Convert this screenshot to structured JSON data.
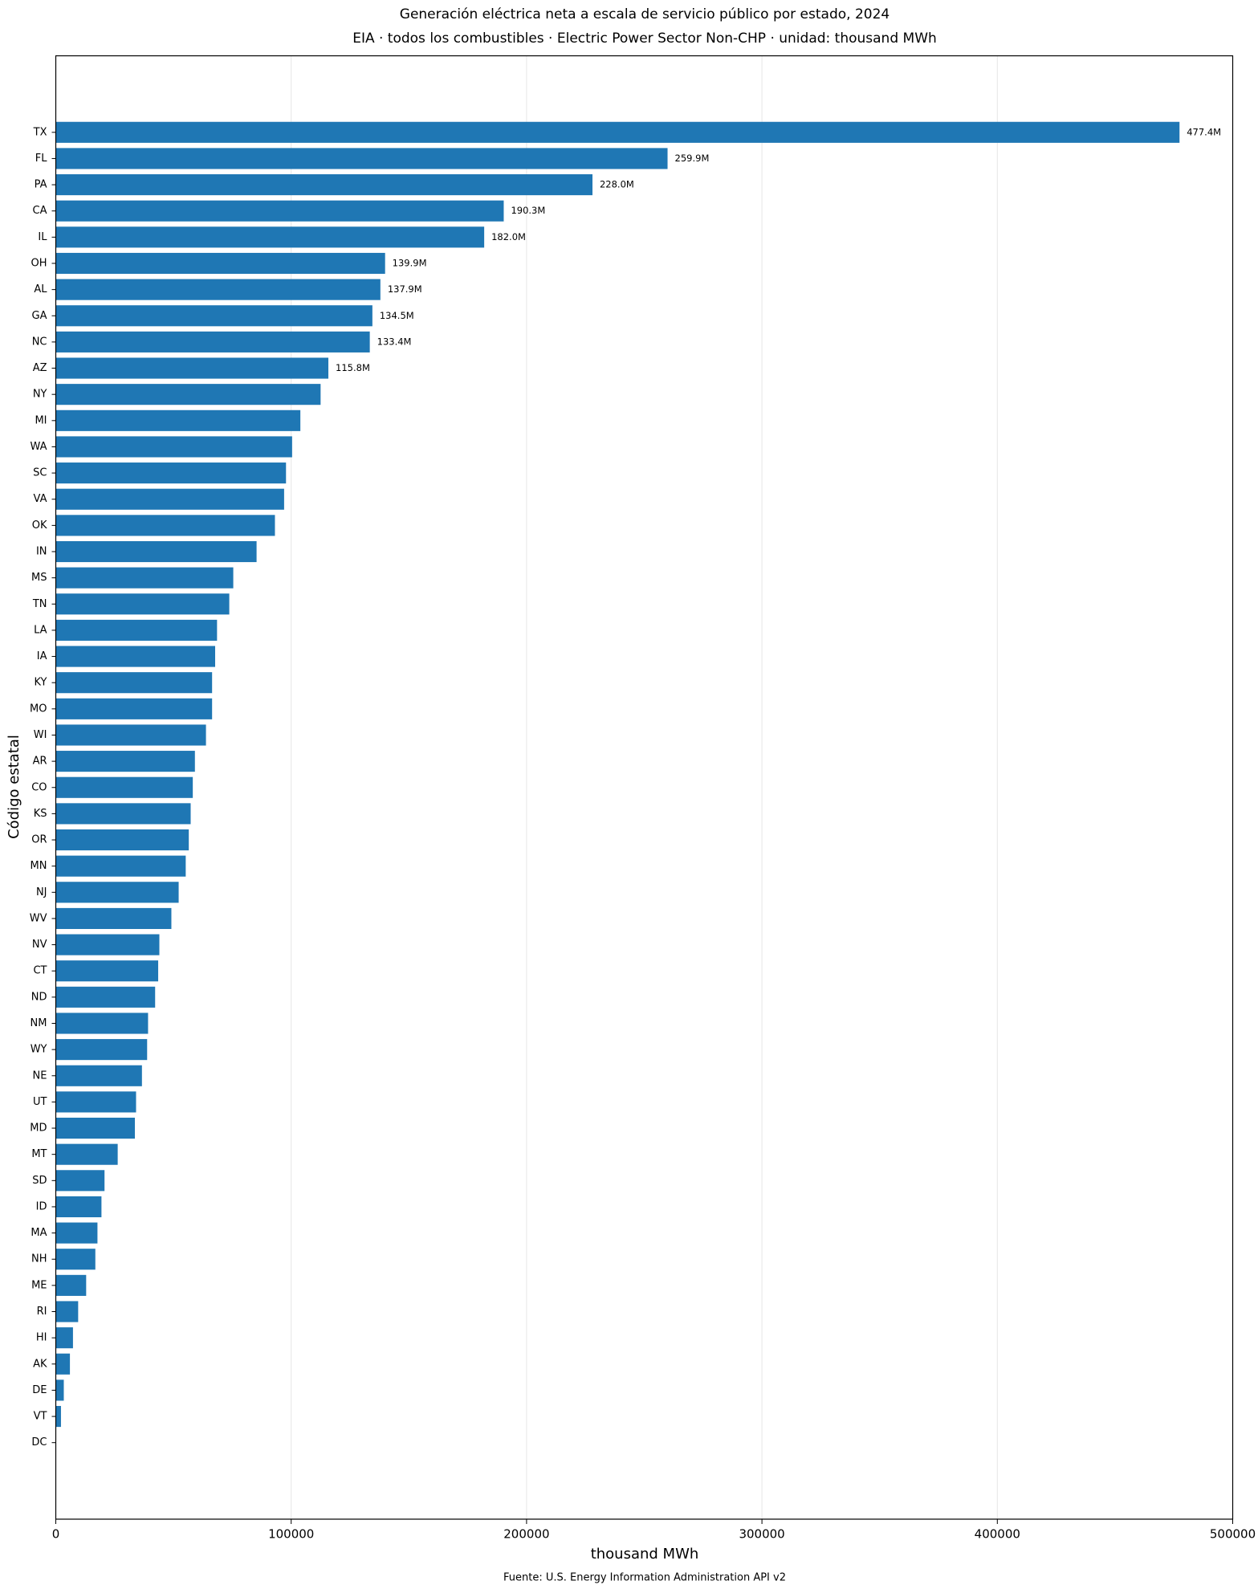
{
  "chart_data": {
    "type": "barh",
    "title": "Generación eléctrica neta a escala de servicio público por estado, 2024",
    "subtitle": "EIA · todos los combustibles · Electric Power Sector Non-CHP · unidad: thousand MWh",
    "x_label": "thousand MWh",
    "y_label": "Código estatal",
    "source": "Fuente: U.S. Energy Information Administration API v2",
    "categories": [
      "TX",
      "FL",
      "PA",
      "CA",
      "IL",
      "OH",
      "AL",
      "GA",
      "NC",
      "AZ",
      "NY",
      "MI",
      "WA",
      "SC",
      "VA",
      "OK",
      "IN",
      "MS",
      "TN",
      "LA",
      "IA",
      "KY",
      "MO",
      "WI",
      "AR",
      "CO",
      "KS",
      "OR",
      "MN",
      "NJ",
      "WV",
      "NV",
      "CT",
      "ND",
      "NM",
      "WY",
      "NE",
      "UT",
      "MD",
      "MT",
      "SD",
      "ID",
      "MA",
      "NH",
      "ME",
      "RI",
      "HI",
      "AK",
      "DE",
      "VT",
      "DC"
    ],
    "values": [
      477400,
      259900,
      228000,
      190300,
      182000,
      139900,
      137900,
      134500,
      133400,
      115800,
      112500,
      103900,
      100400,
      97800,
      97000,
      93100,
      85300,
      75400,
      73700,
      68500,
      67700,
      66400,
      66400,
      63800,
      59100,
      58200,
      57300,
      56500,
      55200,
      52200,
      49100,
      44000,
      43500,
      42200,
      39200,
      38800,
      36600,
      34100,
      33600,
      26300,
      20700,
      19400,
      17700,
      16800,
      12900,
      9500,
      7300,
      6000,
      3400,
      2200,
      100
    ],
    "value_labels": [
      "477.4M",
      "259.9M",
      "228.0M",
      "190.3M",
      "182.0M",
      "139.9M",
      "137.9M",
      "134.5M",
      "133.4M",
      "115.8M",
      null,
      null,
      null,
      null,
      null,
      null,
      null,
      null,
      null,
      null,
      null,
      null,
      null,
      null,
      null,
      null,
      null,
      null,
      null,
      null,
      null,
      null,
      null,
      null,
      null,
      null,
      null,
      null,
      null,
      null,
      null,
      null,
      null,
      null,
      null,
      null,
      null,
      null,
      null,
      null,
      null
    ],
    "color": "#1f77b4",
    "xlim": [
      0,
      500000
    ],
    "xticks": [
      0,
      100000,
      200000,
      300000,
      400000,
      500000
    ],
    "grid": true
  }
}
